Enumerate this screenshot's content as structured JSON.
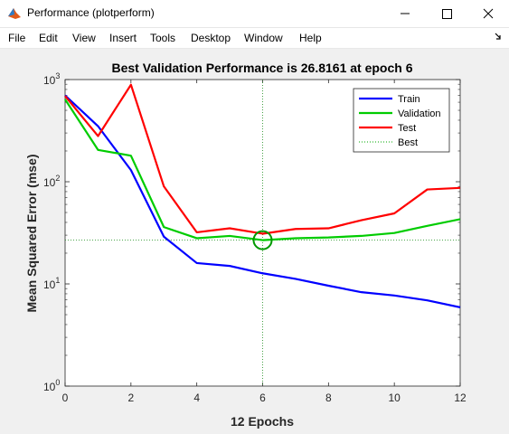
{
  "window": {
    "title": "Performance (plotperform)",
    "icon": "matlab-icon",
    "controls": [
      "minimize-icon",
      "maximize-icon",
      "close-icon"
    ]
  },
  "menubar": {
    "items": [
      "File",
      "Edit",
      "View",
      "Insert",
      "Tools",
      "Desktop",
      "Window",
      "Help"
    ],
    "dock_icon": "dock-arrow-icon"
  },
  "colors": {
    "train": "#0000ff",
    "validation": "#00cc00",
    "test": "#ff0000",
    "best_marker": "#009900",
    "best_line": "#00aa00",
    "axes_bg": "#ffffff"
  },
  "chart_data": {
    "type": "line",
    "title": "Best Validation Performance is 26.8161 at epoch 6",
    "xlabel": "12 Epochs",
    "ylabel": "Mean Squared Error  (mse)",
    "xlim": [
      0,
      12
    ],
    "ylim": [
      1,
      1000
    ],
    "yscale": "log",
    "xticks": [
      "0",
      "2",
      "4",
      "6",
      "8",
      "10",
      "12"
    ],
    "yticks": [
      {
        "base": "10",
        "exp": "0"
      },
      {
        "base": "10",
        "exp": "1"
      },
      {
        "base": "10",
        "exp": "2"
      },
      {
        "base": "10",
        "exp": "3"
      }
    ],
    "grid": false,
    "legend_position": "top-right",
    "x": [
      0,
      1,
      2,
      3,
      4,
      5,
      6,
      7,
      8,
      9,
      10,
      11,
      12
    ],
    "series": [
      {
        "name": "Train",
        "style": "solid",
        "values": [
          700,
          350,
          130,
          29,
          16,
          15,
          12.7,
          11.2,
          9.6,
          8.3,
          7.7,
          6.9,
          5.9
        ]
      },
      {
        "name": "Validation",
        "style": "solid",
        "values": [
          640,
          205,
          180,
          36,
          28,
          29.5,
          26.8161,
          28,
          28.5,
          29.5,
          31.5,
          37,
          43
        ]
      },
      {
        "name": "Test",
        "style": "solid",
        "values": [
          690,
          280,
          890,
          90,
          32,
          35,
          31,
          34.5,
          35,
          42,
          49,
          84,
          87
        ]
      }
    ],
    "best": {
      "name": "Best",
      "style": "dotted",
      "epoch": 6,
      "value": 26.8161
    }
  }
}
